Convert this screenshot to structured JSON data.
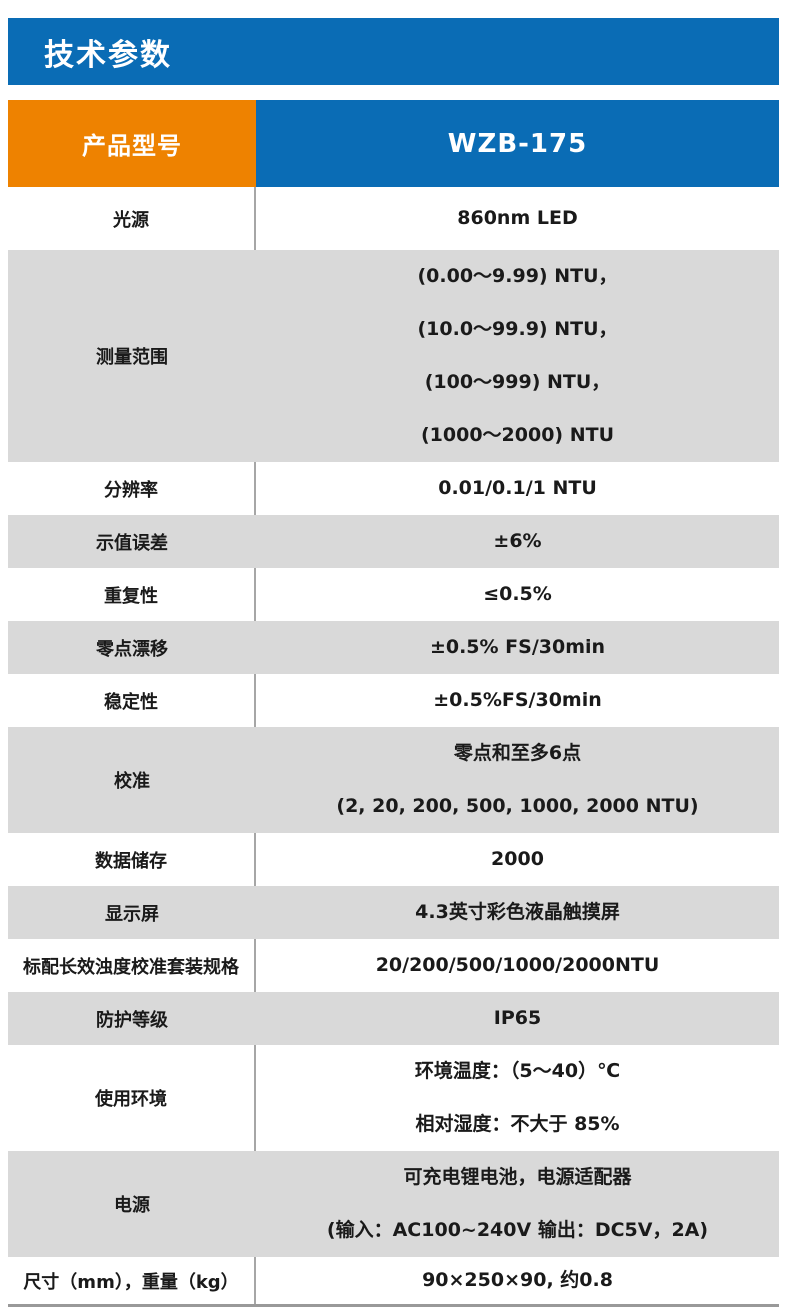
{
  "section_title": "技术参数",
  "colors": {
    "primary_blue": "#0a6cb5",
    "accent_orange": "#ee8200",
    "row_shade_gray": "#d9d9d9",
    "text_black": "#1a1a1a",
    "divider_gray": "#a6a6a6"
  },
  "table": {
    "header": {
      "label": "产品型号",
      "value": "WZB-175"
    },
    "rows": [
      {
        "label": "光源",
        "lines": [
          "860nm LED"
        ]
      },
      {
        "label": "测量范围",
        "lines": [
          "(0.00～9.99) NTU，",
          "(10.0～99.9) NTU，",
          "(100～999) NTU，",
          "(1000～2000) NTU"
        ]
      },
      {
        "label": "分辨率",
        "lines": [
          "0.01/0.1/1 NTU"
        ]
      },
      {
        "label": "示值误差",
        "lines": [
          "±6%"
        ]
      },
      {
        "label": "重复性",
        "lines": [
          "≤0.5%"
        ]
      },
      {
        "label": "零点漂移",
        "lines": [
          "±0.5% FS/30min"
        ]
      },
      {
        "label": "稳定性",
        "lines": [
          "±0.5%FS/30min"
        ]
      },
      {
        "label": "校准",
        "lines": [
          "零点和至多6点",
          "(2, 20, 200, 500, 1000, 2000 NTU)"
        ]
      },
      {
        "label": "数据储存",
        "lines": [
          "2000"
        ]
      },
      {
        "label": "显示屏",
        "lines": [
          "4.3英寸彩色液晶触摸屏"
        ]
      },
      {
        "label": "标配长效浊度校准套装规格",
        "lines": [
          "20/200/500/1000/2000NTU"
        ]
      },
      {
        "label": "防护等级",
        "lines": [
          "IP65"
        ]
      },
      {
        "label": "使用环境",
        "lines": [
          "环境温度：（5～40）℃",
          "相对湿度：不大于 85%"
        ]
      },
      {
        "label": "电源",
        "lines": [
          "可充电锂电池，电源适配器",
          "(输入：AC100~240V 输出：DC5V，2A)"
        ]
      },
      {
        "label": "尺寸（mm），重量（kg）",
        "lines": [
          "90×250×90, 约0.8"
        ]
      }
    ]
  }
}
